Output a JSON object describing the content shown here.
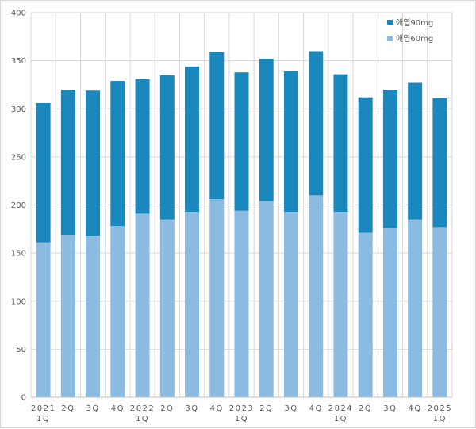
{
  "chart_data": {
    "type": "bar",
    "stacked": true,
    "categories": [
      [
        "2021",
        "1Q"
      ],
      [
        "2Q"
      ],
      [
        "3Q"
      ],
      [
        "4Q"
      ],
      [
        "2022",
        "1Q"
      ],
      [
        "2Q"
      ],
      [
        "3Q"
      ],
      [
        "4Q"
      ],
      [
        "2023",
        "1Q"
      ],
      [
        "2Q"
      ],
      [
        "3Q"
      ],
      [
        "4Q"
      ],
      [
        "2024",
        "1Q"
      ],
      [
        "2Q"
      ],
      [
        "3Q"
      ],
      [
        "4Q"
      ],
      [
        "2025",
        "1Q"
      ]
    ],
    "series": [
      {
        "name": "애엽60mg",
        "color": "#8bbbe0",
        "values": [
          161,
          169,
          168,
          178,
          191,
          185,
          193,
          206,
          194,
          204,
          193,
          210,
          193,
          171,
          176,
          185,
          177
        ]
      },
      {
        "name": "애엽90mg",
        "color": "#1a88bd",
        "values": [
          145,
          151,
          151,
          151,
          140,
          150,
          151,
          153,
          144,
          148,
          146,
          150,
          143,
          141,
          144,
          142,
          134
        ]
      }
    ],
    "y_ticks": [
      "0",
      "50",
      "100",
      "150",
      "200",
      "250",
      "300",
      "350",
      "400"
    ],
    "ylim": [
      0,
      400
    ],
    "grid": true,
    "legend_position": "top-right"
  }
}
